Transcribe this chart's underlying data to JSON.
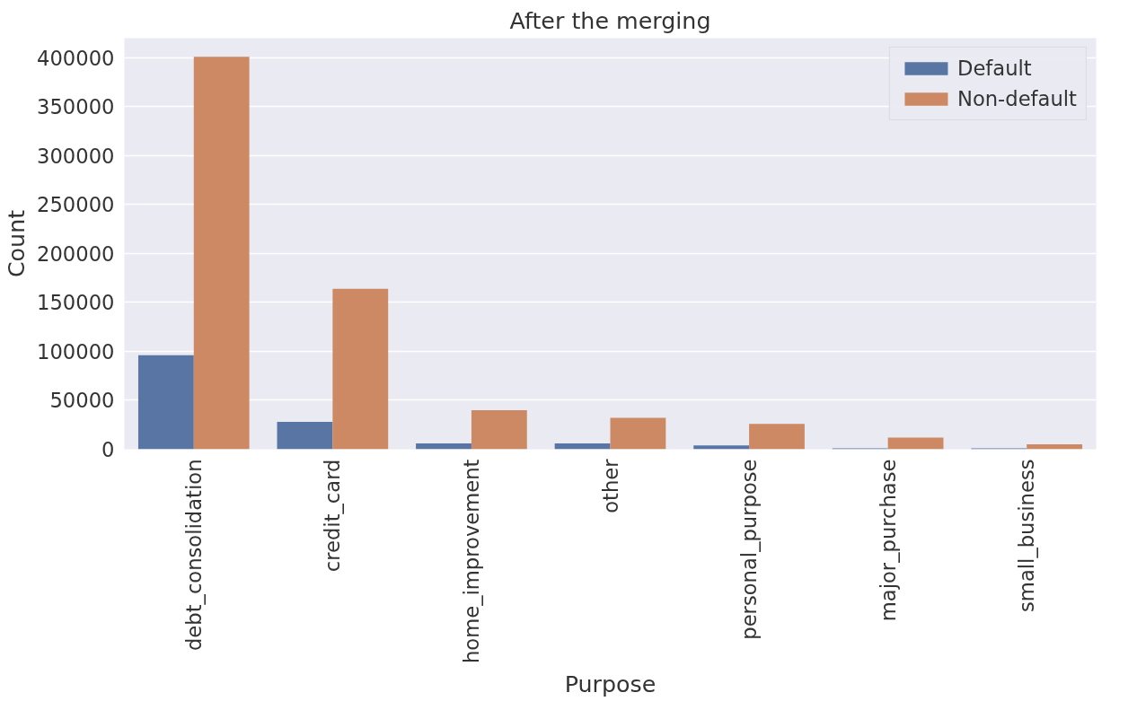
{
  "chart_data": {
    "type": "bar",
    "title": "After the merging",
    "xlabel": "Purpose",
    "ylabel": "Count",
    "categories": [
      "debt_consolidation",
      "credit_card",
      "home_improvement",
      "other",
      "personal_purpose",
      "major_purchase",
      "small_business"
    ],
    "series": [
      {
        "name": "Default",
        "color": "#5975a4",
        "values": [
          96000,
          28000,
          6000,
          6000,
          4000,
          1000,
          1000
        ]
      },
      {
        "name": "Non-default",
        "color": "#cc8963",
        "values": [
          401000,
          164000,
          40000,
          32000,
          26000,
          12000,
          5000
        ]
      }
    ],
    "ylim": [
      0,
      420000
    ],
    "yticks": [
      0,
      50000,
      100000,
      150000,
      200000,
      250000,
      300000,
      350000,
      400000
    ],
    "grid": "y",
    "legend": "top right"
  }
}
